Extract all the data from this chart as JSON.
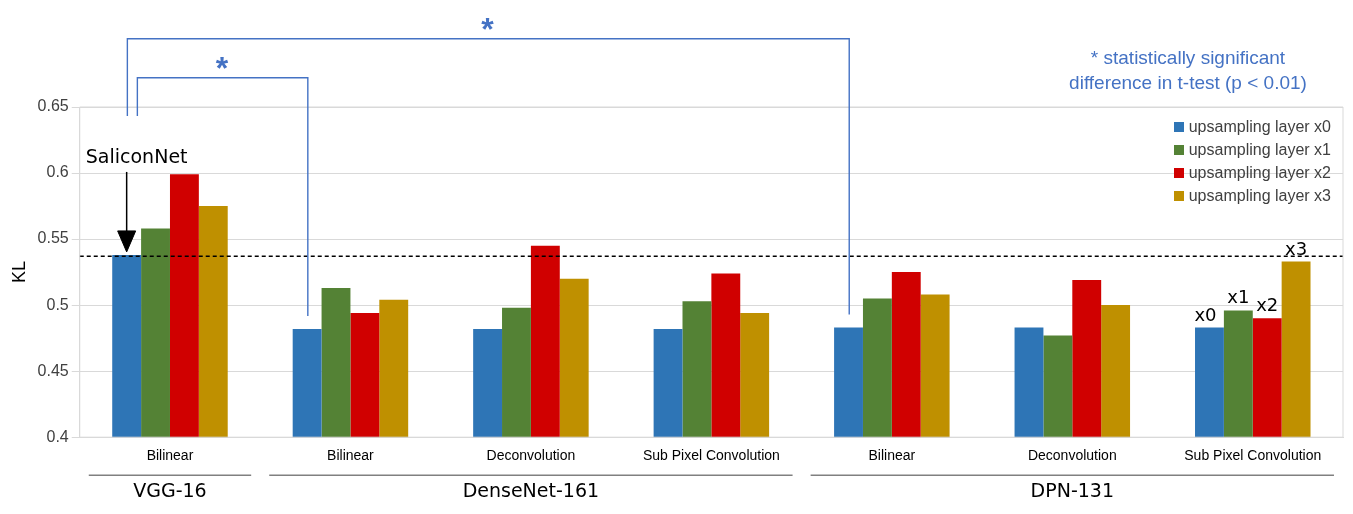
{
  "chart_data": {
    "type": "bar",
    "ylabel": "KL",
    "categories": [
      "Bilinear",
      "Bilinear",
      "Deconvolution",
      "Sub Pixel Convolution",
      "Bilinear",
      "Deconvolution",
      "Sub Pixel Convolution"
    ],
    "series": [
      {
        "name": "upsampling layer x0",
        "color": "#2e75b6",
        "values": [
          0.538,
          0.482,
          0.482,
          0.482,
          0.483,
          0.483,
          0.483
        ]
      },
      {
        "name": "upsampling layer x1",
        "color": "#548235",
        "values": [
          0.558,
          0.513,
          0.498,
          0.503,
          0.505,
          0.477,
          0.496
        ]
      },
      {
        "name": "upsampling layer x2",
        "color": "#d00000",
        "values": [
          0.599,
          0.494,
          0.545,
          0.524,
          0.525,
          0.519,
          0.49
        ]
      },
      {
        "name": "upsampling layer x3",
        "color": "#bf9000",
        "values": [
          0.575,
          0.504,
          0.52,
          0.494,
          0.508,
          0.5,
          0.533
        ]
      }
    ],
    "ylim": [
      0.4,
      0.65
    ],
    "yticks": [
      0.4,
      0.45,
      0.5,
      0.55,
      0.6,
      0.65
    ],
    "grid": "y",
    "legend": "top right",
    "ref_lines": [
      {
        "axis": "y",
        "value": 0.537,
        "color": "#000000",
        "line_style": "dashed"
      }
    ],
    "annotations": [
      "SaliconNet",
      "x0",
      "x1",
      "x2",
      "x3",
      "*",
      "*",
      "* statistically significant difference in t-test (p < 0.01)",
      "VGG-16",
      "DenseNet-161",
      "DPN-131"
    ]
  }
}
